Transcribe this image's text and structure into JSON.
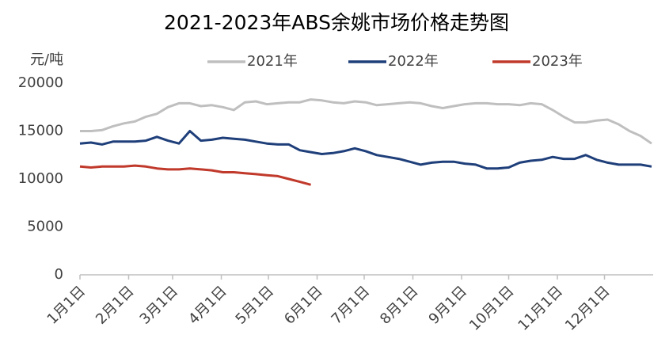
{
  "chart_data": {
    "type": "line",
    "title": "2021-2023年ABS余姚市场价格走势图",
    "y_label": "元/吨",
    "x": [
      0,
      7,
      14,
      21,
      28,
      35,
      42,
      49,
      56,
      63,
      70,
      77,
      84,
      91,
      98,
      105,
      112,
      119,
      126,
      133,
      140,
      147,
      154,
      161,
      168,
      175,
      182,
      189,
      196,
      203,
      210,
      217,
      224,
      231,
      238,
      245,
      252,
      259,
      266,
      273,
      280,
      287,
      294,
      301,
      308,
      315,
      322,
      329,
      336,
      343,
      350,
      357,
      364
    ],
    "xlim": [
      0,
      365
    ],
    "xticks": [
      {
        "value": 0,
        "label": "1月1日"
      },
      {
        "value": 31,
        "label": "2月1日"
      },
      {
        "value": 59,
        "label": "3月1日"
      },
      {
        "value": 90,
        "label": "4月1日"
      },
      {
        "value": 120,
        "label": "5月1日"
      },
      {
        "value": 151,
        "label": "6月1日"
      },
      {
        "value": 181,
        "label": "7月1日"
      },
      {
        "value": 212,
        "label": "8月1日"
      },
      {
        "value": 243,
        "label": "9月1日"
      },
      {
        "value": 273,
        "label": "10月1日"
      },
      {
        "value": 304,
        "label": "11月1日"
      },
      {
        "value": 334,
        "label": "12月1日"
      }
    ],
    "ylim": [
      0,
      20000
    ],
    "yticks": [
      0,
      5000,
      10000,
      15000,
      20000
    ],
    "grid": false,
    "legend": "top",
    "series": [
      {
        "name": "2021年",
        "color": "#bfbfbf",
        "values": [
          15000,
          15000,
          15100,
          15500,
          15800,
          16000,
          16500,
          16800,
          17500,
          17900,
          17900,
          17600,
          17700,
          17500,
          17200,
          18000,
          18100,
          17800,
          17900,
          18000,
          18000,
          18300,
          18200,
          18000,
          17900,
          18100,
          18000,
          17700,
          17800,
          17900,
          18000,
          17900,
          17600,
          17400,
          17600,
          17800,
          17900,
          17900,
          17800,
          17800,
          17700,
          17900,
          17800,
          17200,
          16500,
          15900,
          15900,
          16100,
          16200,
          15700,
          15000,
          14500,
          13700
        ]
      },
      {
        "name": "2022年",
        "color": "#1f3f7a",
        "values": [
          13700,
          13800,
          13600,
          13900,
          13900,
          13900,
          14000,
          14400,
          14000,
          13700,
          15000,
          14000,
          14100,
          14300,
          14200,
          14100,
          13900,
          13700,
          13600,
          13600,
          13000,
          12800,
          12600,
          12700,
          12900,
          13200,
          12900,
          12500,
          12300,
          12100,
          11800,
          11500,
          11700,
          11800,
          11800,
          11600,
          11500,
          11100,
          11100,
          11200,
          11700,
          11900,
          12000,
          12300,
          12100,
          12100,
          12500,
          12000,
          11700,
          11500,
          11500,
          11500,
          11300
        ]
      },
      {
        "name": "2023年",
        "color": "#c0392b",
        "values": [
          11300,
          11200,
          11300,
          11300,
          11300,
          11400,
          11300,
          11100,
          11000,
          11000,
          11100,
          11000,
          10900,
          10700,
          10700,
          10600,
          10500,
          10400,
          10300,
          10000,
          9700,
          9400,
          null,
          null,
          null,
          null,
          null,
          null,
          null,
          null,
          null,
          null,
          null,
          null,
          null,
          null,
          null,
          null,
          null,
          null,
          null,
          null,
          null,
          null,
          null,
          null,
          null,
          null,
          null,
          null,
          null,
          null,
          null
        ]
      }
    ]
  }
}
